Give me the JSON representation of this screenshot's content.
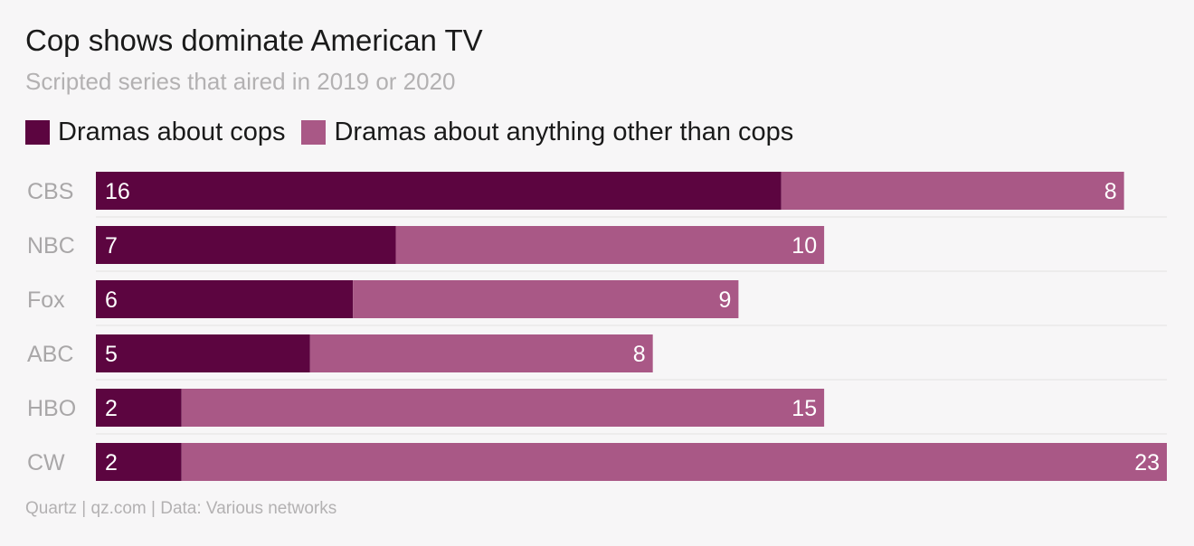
{
  "title": "Cop shows dominate American TV",
  "subtitle": "Scripted series that aired in 2019 or 2020",
  "footer": "Quartz | qz.com | Data: Various networks",
  "chart_data": {
    "type": "bar",
    "orientation": "horizontal",
    "stacked": true,
    "categories": [
      "CBS",
      "NBC",
      "Fox",
      "ABC",
      "HBO",
      "CW"
    ],
    "series": [
      {
        "name": "Dramas about cops",
        "color": "#5c0540",
        "values": [
          16,
          7,
          6,
          5,
          2,
          2
        ]
      },
      {
        "name": "Dramas about anything other than cops",
        "color": "#a95886",
        "values": [
          8,
          10,
          9,
          8,
          15,
          23
        ]
      }
    ],
    "xlim": [
      0,
      25
    ],
    "legend": "top-left",
    "grid": false,
    "data_labels": true
  }
}
